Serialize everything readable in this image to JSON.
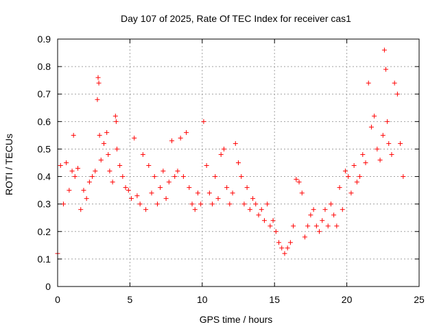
{
  "chart_data": {
    "type": "scatter",
    "title": "Day 107 of 2025, Rate Of TEC Index for receiver cas1",
    "xlabel": "GPS time / hours",
    "ylabel": "ROTI / TECUs",
    "xlim": [
      0,
      25
    ],
    "ylim": [
      0,
      0.9
    ],
    "xticks": [
      "0",
      "5",
      "10",
      "15",
      "20",
      "25"
    ],
    "yticks": [
      "0",
      "0.1",
      "0.2",
      "0.3",
      "0.4",
      "0.5",
      "0.6",
      "0.7",
      "0.8",
      "0.9"
    ],
    "grid": true,
    "marker": "+",
    "color": "#ff0000",
    "series": [
      {
        "x": [
          0.0,
          0.2,
          0.4,
          0.6,
          0.8,
          1.0,
          1.1,
          1.2,
          1.4,
          1.6,
          1.8,
          2.0,
          2.2,
          2.4,
          2.6,
          2.75,
          2.8,
          2.85,
          2.9,
          3.0,
          3.2,
          3.4,
          3.5,
          3.6,
          3.8,
          4.0,
          4.05,
          4.1,
          4.3,
          4.5,
          4.7,
          4.9,
          5.1,
          5.3,
          5.5,
          5.7,
          5.9,
          6.1,
          6.3,
          6.5,
          6.7,
          6.9,
          7.1,
          7.3,
          7.5,
          7.7,
          7.9,
          8.1,
          8.3,
          8.5,
          8.7,
          8.9,
          9.1,
          9.3,
          9.5,
          9.7,
          9.9,
          10.1,
          10.3,
          10.5,
          10.7,
          10.9,
          11.1,
          11.3,
          11.5,
          11.7,
          11.9,
          12.1,
          12.3,
          12.5,
          12.7,
          12.9,
          13.1,
          13.3,
          13.5,
          13.7,
          13.9,
          14.1,
          14.3,
          14.5,
          14.7,
          14.9,
          15.1,
          15.3,
          15.5,
          15.7,
          15.9,
          16.1,
          16.3,
          16.5,
          16.7,
          16.9,
          17.1,
          17.3,
          17.5,
          17.7,
          17.9,
          18.1,
          18.3,
          18.5,
          18.7,
          18.9,
          19.1,
          19.3,
          19.5,
          19.7,
          19.9,
          20.1,
          20.3,
          20.5,
          20.7,
          20.9,
          21.1,
          21.3,
          21.5,
          21.7,
          21.9,
          22.1,
          22.3,
          22.5,
          22.6,
          22.7,
          22.8,
          22.9,
          23.1,
          23.3,
          23.5,
          23.7,
          23.9
        ],
        "y": [
          0.12,
          0.44,
          0.3,
          0.45,
          0.35,
          0.42,
          0.55,
          0.4,
          0.43,
          0.28,
          0.35,
          0.32,
          0.38,
          0.4,
          0.42,
          0.68,
          0.76,
          0.74,
          0.55,
          0.46,
          0.52,
          0.56,
          0.48,
          0.42,
          0.38,
          0.62,
          0.6,
          0.5,
          0.44,
          0.4,
          0.36,
          0.35,
          0.32,
          0.54,
          0.33,
          0.3,
          0.48,
          0.28,
          0.44,
          0.34,
          0.4,
          0.3,
          0.36,
          0.42,
          0.32,
          0.38,
          0.53,
          0.4,
          0.42,
          0.54,
          0.4,
          0.56,
          0.36,
          0.3,
          0.28,
          0.34,
          0.3,
          0.6,
          0.44,
          0.34,
          0.3,
          0.4,
          0.32,
          0.48,
          0.5,
          0.36,
          0.3,
          0.34,
          0.52,
          0.45,
          0.4,
          0.3,
          0.36,
          0.28,
          0.32,
          0.3,
          0.26,
          0.28,
          0.24,
          0.3,
          0.22,
          0.24,
          0.2,
          0.16,
          0.14,
          0.12,
          0.14,
          0.16,
          0.22,
          0.39,
          0.38,
          0.34,
          0.18,
          0.22,
          0.26,
          0.28,
          0.22,
          0.2,
          0.24,
          0.28,
          0.22,
          0.3,
          0.26,
          0.22,
          0.36,
          0.28,
          0.42,
          0.4,
          0.34,
          0.44,
          0.38,
          0.4,
          0.48,
          0.45,
          0.74,
          0.58,
          0.62,
          0.5,
          0.46,
          0.55,
          0.86,
          0.79,
          0.6,
          0.52,
          0.48,
          0.74,
          0.7,
          0.52,
          0.4
        ]
      }
    ]
  }
}
